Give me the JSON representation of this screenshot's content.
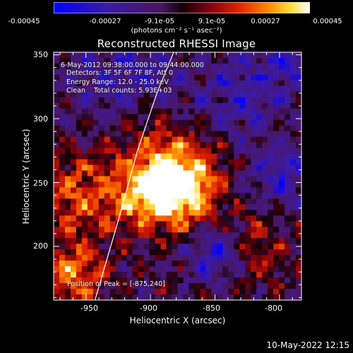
{
  "title": "Reconstructed RHESSI Image",
  "colorbar": {
    "ticks": [
      "-0.00045",
      "-0.00027",
      "-9.1e-05",
      "9.1e-05",
      "0.00027",
      "0.00045"
    ],
    "label": "(photons cm⁻² s⁻¹ asec⁻²)",
    "range": [
      -0.00045,
      0.00045
    ],
    "colormap": "blue-purple-red-yellow-white"
  },
  "info": {
    "line1": "6-May-2012 09:38:00.000 to 09:44:00.000",
    "line2": "Detectors: 3F 5F 6F 7F 8F, Att 0",
    "line3": "Energy Range: 12.0 - 25.0 keV",
    "line4": "Clean    Total counts: 5.93E+03",
    "peak": "Position of Peak = [-875,240]"
  },
  "axes": {
    "xlabel": "Heliocentric X (arcsec)",
    "ylabel": "Heliocentric Y (arcsec)",
    "xticks": [
      "-950",
      "-900",
      "-850",
      "-800"
    ],
    "yticks": [
      "200",
      "250",
      "300",
      "350"
    ]
  },
  "timestamp": "10-May-2022 12:15",
  "chart_data": {
    "type": "heatmap",
    "title": "Reconstructed RHESSI Image",
    "xlabel": "Heliocentric X (arcsec)",
    "ylabel": "Heliocentric Y (arcsec)",
    "xlim": [
      -975,
      -783
    ],
    "ylim": [
      158,
      352
    ],
    "xticks": [
      -950,
      -900,
      -850,
      -800
    ],
    "yticks": [
      200,
      250,
      300,
      350
    ],
    "peak": [
      -875,
      240
    ],
    "limb_curve": [
      [
        -943,
        158
      ],
      [
        -925,
        220
      ],
      [
        -910,
        275
      ],
      [
        -895,
        320
      ],
      [
        -882,
        352
      ]
    ],
    "grid": false
  }
}
